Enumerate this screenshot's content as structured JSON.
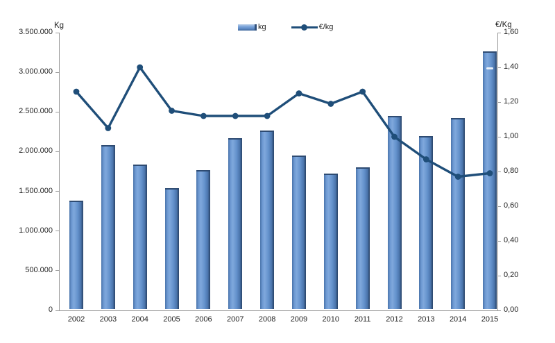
{
  "chart_data": {
    "type": "bar+line",
    "categories": [
      "2002",
      "2003",
      "2004",
      "2005",
      "2006",
      "2007",
      "2008",
      "2009",
      "2010",
      "2011",
      "2012",
      "2013",
      "2014",
      "2015"
    ],
    "series": [
      {
        "name": "kg",
        "type": "bar",
        "axis": "left",
        "values": [
          1380000,
          2080000,
          1840000,
          1540000,
          1770000,
          2170000,
          2270000,
          1950000,
          1720000,
          1800000,
          2450000,
          2200000,
          2420000,
          3260000
        ],
        "color": "#5E8CC8",
        "color_light": "#7FA8DC",
        "color_dark": "#2E4B72"
      },
      {
        "name": "€/kg",
        "type": "line",
        "axis": "right",
        "values": [
          1.26,
          1.05,
          1.4,
          1.15,
          1.12,
          1.12,
          1.12,
          1.25,
          1.19,
          1.26,
          1.0,
          0.87,
          0.77,
          0.79
        ],
        "color": "#1F4E79"
      }
    ],
    "left_axis": {
      "label": "Kg",
      "min": 0,
      "max": 3500000,
      "step": 500000,
      "tick_labels": [
        "0",
        "500.000",
        "1.000.000",
        "1.500.000",
        "2.000.000",
        "2.500.000",
        "3.000.000",
        "3.500.000"
      ]
    },
    "right_axis": {
      "label": "€/Kg",
      "min": 0,
      "max": 1.6,
      "step": 0.2,
      "tick_labels": [
        "0,00",
        "0,20",
        "0,40",
        "0,60",
        "0,80",
        "1,00",
        "1,20",
        "1,40",
        "1,60"
      ]
    },
    "legend": {
      "position": "top-center",
      "items": [
        {
          "label": "kg",
          "marker": "bar-swatch"
        },
        {
          "label": "€/kg",
          "marker": "line-swatch"
        }
      ]
    },
    "grid": false,
    "axis_color": "#9B9B9B",
    "background": "#FFFFFF"
  }
}
